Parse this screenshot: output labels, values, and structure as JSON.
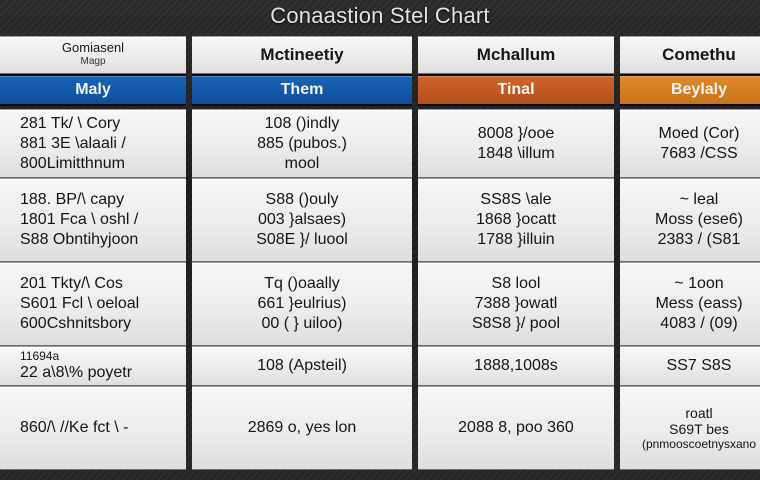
{
  "chart_data": {
    "type": "table",
    "title": "Conaastion Stel Chart",
    "columns": [
      {
        "name": "Gomiasenl",
        "sub": "Magp",
        "band": "Maly",
        "band_color": "#135aa8"
      },
      {
        "name": "Mctineetiy",
        "sub": "",
        "band": "Them",
        "band_color": "#135aa8"
      },
      {
        "name": "Mchallum",
        "sub": "",
        "band": "Tinal",
        "band_color": "#c55a26"
      },
      {
        "name": "Comethu",
        "sub": "",
        "band": "Beylaly",
        "band_color": "#d67f23"
      }
    ],
    "rows": [
      [
        [
          "281 Tk/ \\ Cory",
          "881 3E \\alaali /",
          "800Limitthnum"
        ],
        [
          "108 ()indly",
          "885 (pubos.)",
          "mool"
        ],
        [
          "8008 }/ooe",
          "1848 \\illum"
        ],
        [
          "Moed (Cor)",
          "7683 /CSS"
        ]
      ],
      [
        [
          "188. BP/\\ capy",
          "1801 Fca \\ oshl /",
          "S88 Obntihyjoon"
        ],
        [
          "S88 ()ouly",
          "003 }alsaes)",
          "S08E }/ luool"
        ],
        [
          "SS8S \\ale",
          "1868 }ocatt",
          "1788 }illuin"
        ],
        [
          "~ leal",
          "Moss (ese6)",
          "2383 / (S81"
        ]
      ],
      [
        [
          "201 Tkty/\\ Cos",
          "S601 Fcl \\ oeloal",
          "600Cshnitsbory"
        ],
        [
          "Tq ()oaally",
          "661 }eulrius)",
          "00 ( } uiloo)"
        ],
        [
          "S8 lool",
          "7388 }owatl",
          "S8S8 }/ pool"
        ],
        [
          "~ 1oon",
          "Mess (eass)",
          "4083 / (09)"
        ]
      ],
      [
        [
          "11694a",
          "22 a\\8\\% poyetr"
        ],
        [
          "108 (Apsteil)"
        ],
        [
          "1888,1008s"
        ],
        [
          "SS7 S8S"
        ]
      ],
      [
        [
          "860/\\ //Ke fct \\ -"
        ],
        [
          "2869 o, yes lon"
        ],
        [
          "2088 8, poo 360"
        ],
        [
          "roatl",
          "S69T bes",
          "(pnmooscoetnysxano"
        ]
      ]
    ]
  }
}
